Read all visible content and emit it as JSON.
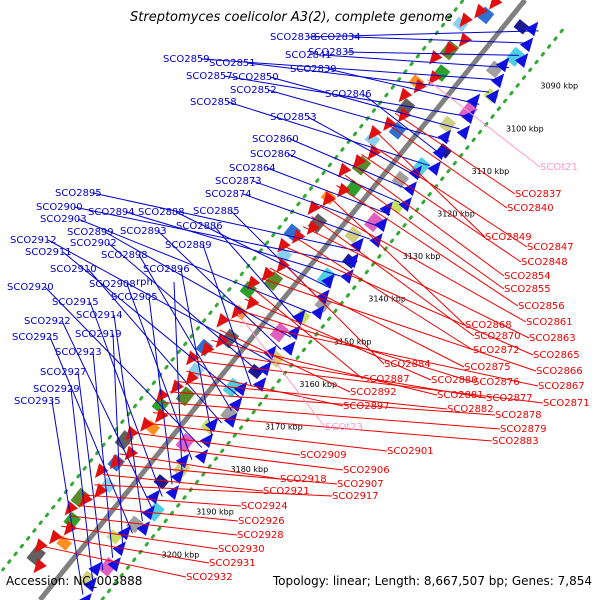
{
  "title": "Streptomyces coelicolor A3(2), complete genome",
  "footer": {
    "accession": "Accession: NC_003888",
    "summary": "Topology: linear; Length: 8,667,507 bp; Genes: 7,854"
  },
  "colors": {
    "forward_label": "#0000cc",
    "reverse_label": "#ee0000",
    "rna_label": "#ff99cc",
    "backbone": "#808080",
    "dots": "#33aa33"
  },
  "kbp_ticks": [
    "3090 kbp",
    "3100 kbp",
    "3110 kbp",
    "3120 kbp",
    "3130 kbp",
    "3140 kbp",
    "3150 kbp",
    "3160 kbp",
    "3170 kbp",
    "3180 kbp",
    "3190 kbp",
    "3200 kbp"
  ],
  "forward_genes": [
    "SCO2838",
    "SCO2834",
    "SCO2835",
    "SCO2841",
    "SCO2859",
    "SCO2851",
    "SCO2839",
    "SCO2857",
    "SCO2850",
    "SCO2852",
    "SCO2846",
    "SCO2858",
    "SCO2853",
    "SCO2860",
    "SCO2862",
    "SCO2864",
    "SCO2873",
    "SCO2874",
    "SCO2895",
    "SCO2900",
    "SCO2894",
    "SCO2888",
    "SCO2885",
    "SCO2903",
    "SCO2886",
    "SCO2899",
    "SCO2893",
    "SCO2912",
    "SCO2902",
    "SCO2889",
    "SCO2911",
    "SCO2898",
    "SCO2910",
    "SCO2896",
    "SCO2920",
    "SCO2908",
    "rph",
    "SCO2905",
    "SCO2915",
    "SCO2922",
    "SCO2914",
    "SCO2925",
    "SCO2919",
    "SCO2923",
    "SCO2927",
    "SCO2929",
    "SCO2935"
  ],
  "reverse_genes": [
    "SCO2837",
    "SCO2840",
    "SCO2849",
    "SCO2847",
    "SCO2848",
    "SCO2854",
    "SCO2855",
    "SCO2856",
    "SCO2868",
    "SCO2861",
    "SCO2870",
    "SCO2863",
    "SCO2872",
    "SCO2865",
    "SCO2884",
    "SCO2875",
    "SCO2866",
    "SCO2887",
    "SCO2880",
    "SCO2876",
    "SCO2867",
    "SCO2892",
    "SCO2881",
    "SCO2877",
    "SCO2871",
    "SCO2897",
    "SCO2882",
    "SCO2878",
    "SCO2879",
    "SCO2883",
    "SCO2901",
    "SCO2909",
    "SCO2906",
    "SCO2918",
    "SCO2907",
    "SCO2921",
    "SCO2917",
    "SCO2924",
    "SCO2926",
    "SCO2928",
    "SCO2930",
    "SCO2931",
    "SCO2932"
  ],
  "rna_genes": [
    "SCOt21",
    "SCOt23"
  ]
}
